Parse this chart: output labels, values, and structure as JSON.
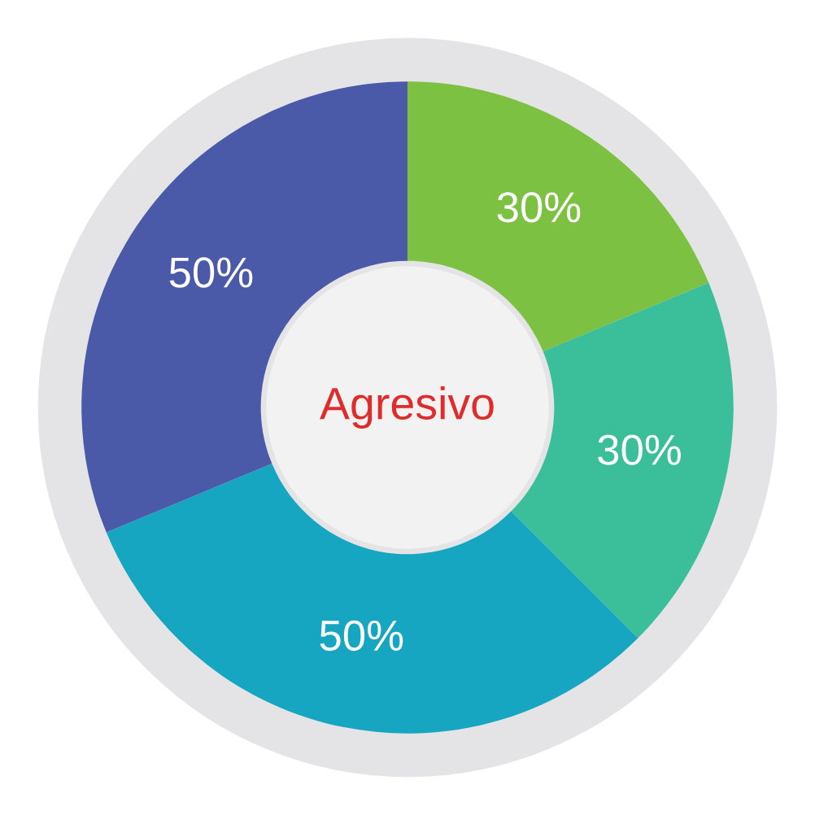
{
  "chart_data": {
    "type": "donut",
    "title": "Agresivo",
    "categories": [
      null,
      null,
      null,
      null
    ],
    "values": [
      30,
      30,
      50,
      50
    ],
    "value_labels": [
      "30%",
      "30%",
      "50%",
      "50%"
    ],
    "colors": [
      "#7cc142",
      "#3bbf9b",
      "#16a6c1",
      "#4b5aa8"
    ]
  }
}
